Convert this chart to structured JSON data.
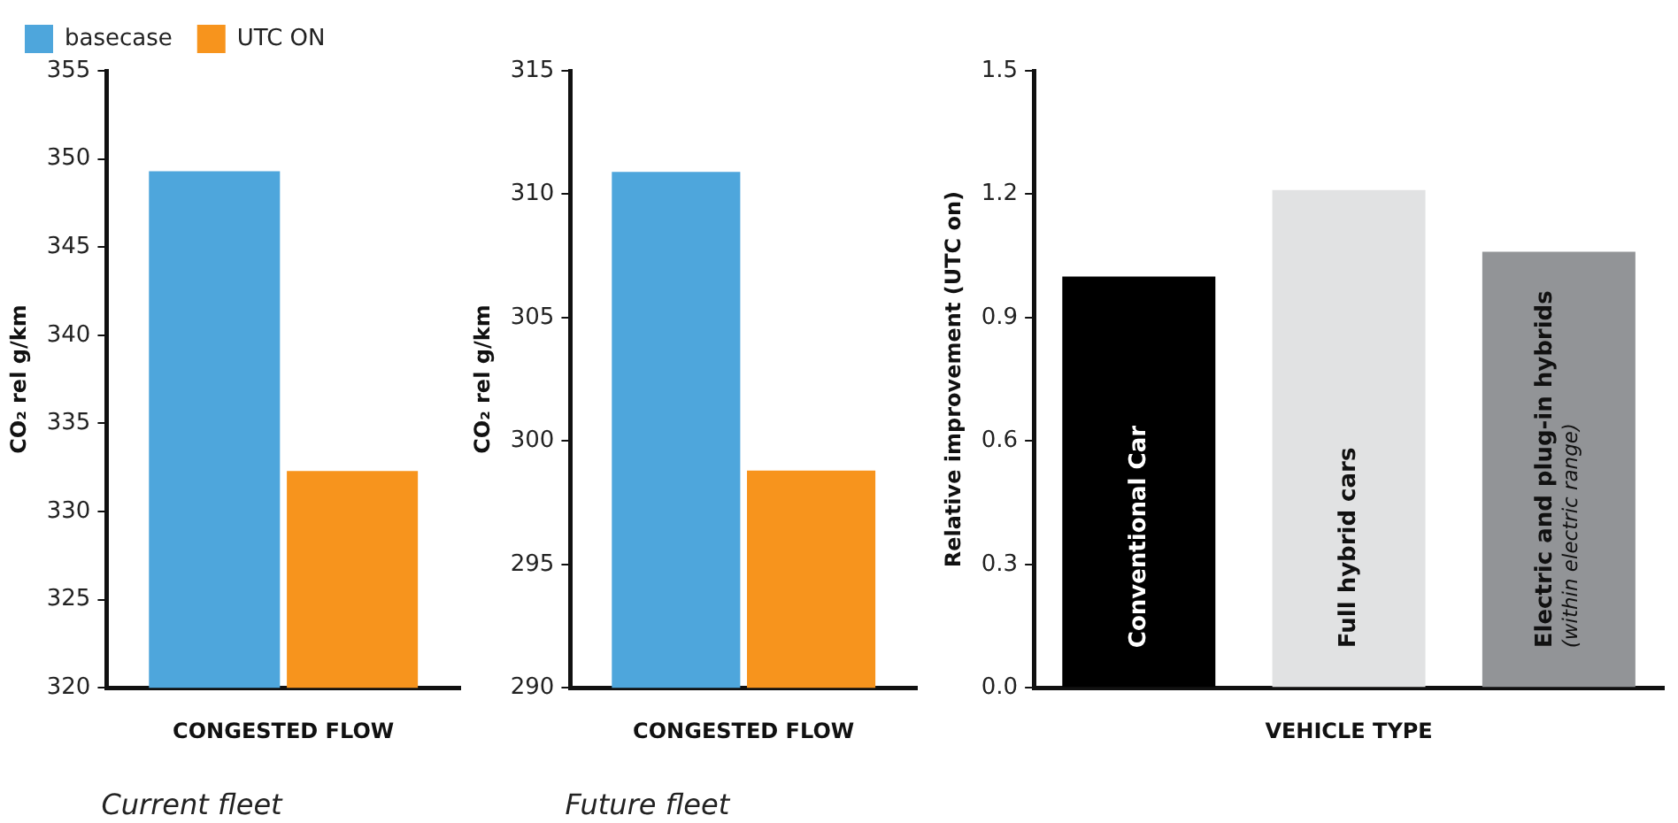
{
  "chart_data": [
    {
      "type": "bar",
      "categories": [
        null
      ],
      "xlabel": "CONGESTED FLOW",
      "ylabel": "CO₂ rel g/km",
      "series": [
        {
          "name": "basecase",
          "color": "#4ea6dc",
          "values": [
            349.3
          ]
        },
        {
          "name": "UTC ON",
          "color": "#f7941d",
          "values": [
            332.3
          ]
        }
      ],
      "ylim": [
        320,
        355
      ],
      "yticks": [
        320,
        325,
        330,
        335,
        340,
        345,
        350,
        355
      ],
      "grid": false,
      "legend": "top left",
      "annotations": [
        "Current fleet"
      ]
    },
    {
      "type": "bar",
      "categories": [
        null
      ],
      "xlabel": "CONGESTED FLOW",
      "ylabel": "CO₂ rel g/km",
      "series": [
        {
          "color": "#4ea6dc",
          "values": [
            310.9
          ]
        },
        {
          "color": "#f7941d",
          "values": [
            298.8
          ]
        }
      ],
      "ylim": [
        290,
        315
      ],
      "yticks": [
        290,
        295,
        300,
        305,
        310,
        315
      ],
      "grid": false,
      "legend": false,
      "annotations": [
        "Future fleet"
      ]
    },
    {
      "type": "bar",
      "categories": [
        "Conventional Car",
        "Full hybrid cars",
        "Electric and plug-in hybrids\n(within electric range)"
      ],
      "xlabel": "VEHICLE TYPE",
      "ylabel": "Relative improvement (UTC on)",
      "values": [
        1.0,
        1.21,
        1.06
      ],
      "colors": [
        "#000000",
        "#e1e2e3",
        "#929497"
      ],
      "ylim": [
        0,
        1.5
      ],
      "yticks": [
        {
          "value": 0,
          "label": "0.0"
        },
        0.3,
        0.6,
        0.9,
        1.2,
        1.5
      ],
      "grid": false,
      "legend": false
    }
  ]
}
